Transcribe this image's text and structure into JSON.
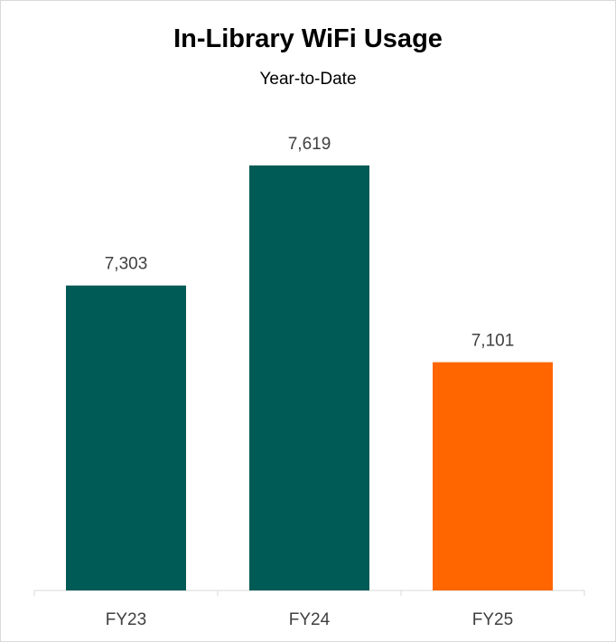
{
  "chart_data": {
    "type": "bar",
    "title": "In-Library WiFi Usage",
    "subtitle": "Year-to-Date",
    "categories": [
      "FY23",
      "FY24",
      "FY25"
    ],
    "values": [
      7303,
      7619,
      7101
    ],
    "data_labels": [
      "7,303",
      "7,619",
      "7,101"
    ],
    "colors": [
      "#005a55",
      "#005a55",
      "#ff6600"
    ],
    "xlabel": "",
    "ylabel": "",
    "ylim": [
      6500,
      7700
    ],
    "grid": false,
    "legend": "none"
  }
}
